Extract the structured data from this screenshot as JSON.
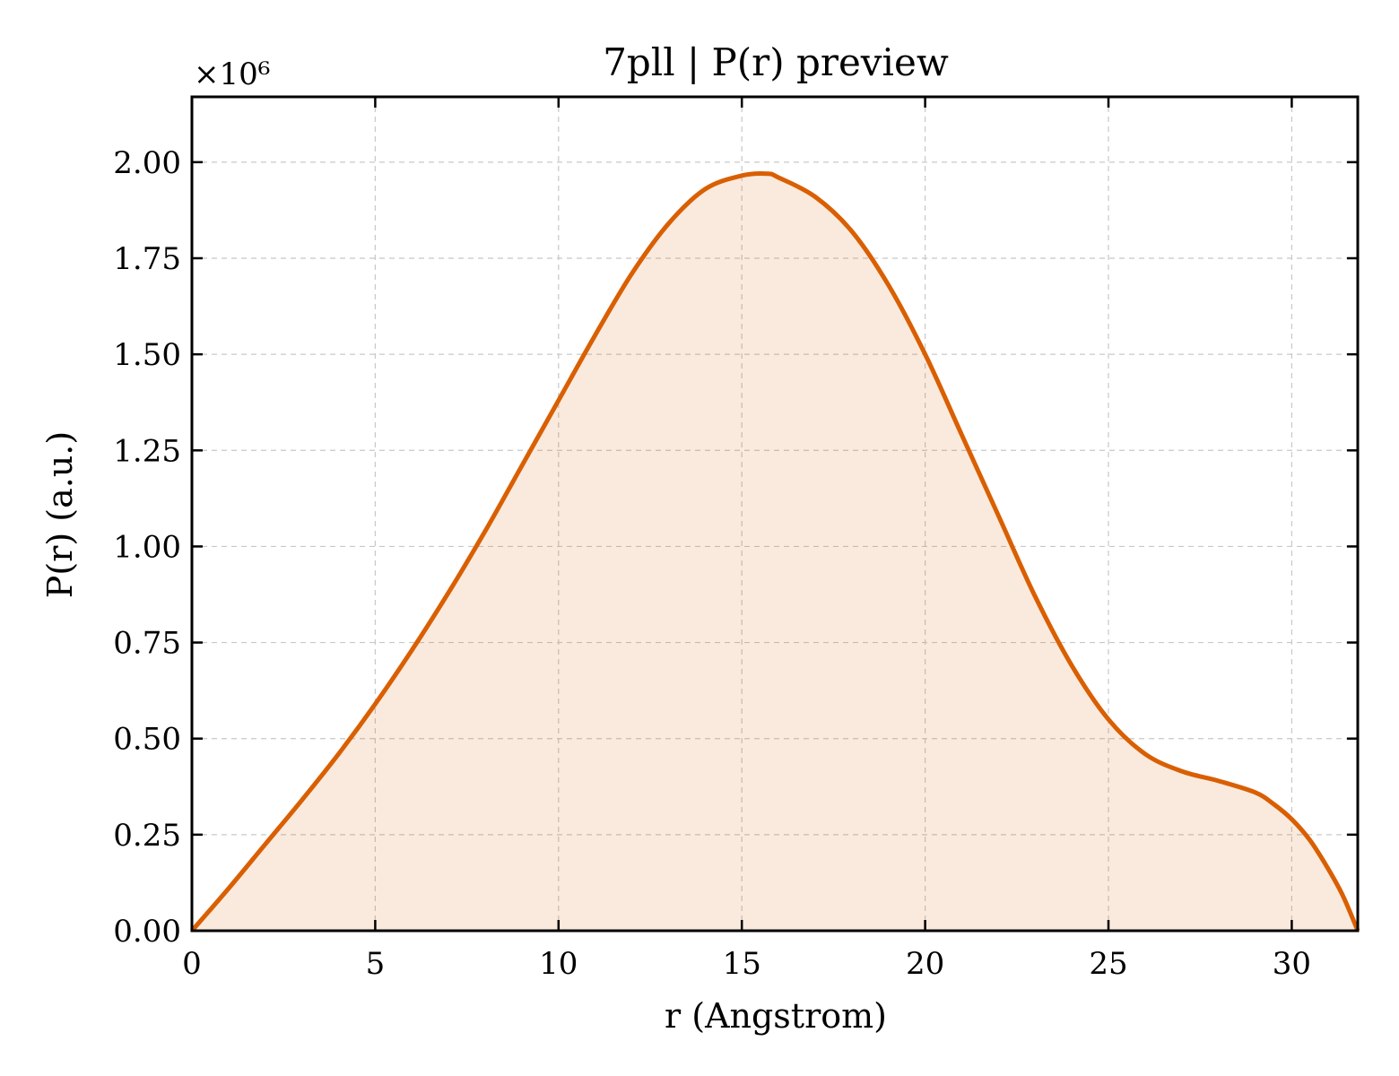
{
  "chart_data": {
    "type": "area",
    "title": "7pll | P(r) preview",
    "xlabel": "r (Angstrom)",
    "ylabel": "P(r) (a.u.)",
    "y_multiplier": "×10⁶",
    "xlim": [
      0,
      31.8
    ],
    "ylim": [
      0,
      2.17
    ],
    "xticks": [
      0,
      5,
      10,
      15,
      20,
      25,
      30
    ],
    "yticks": [
      0.0,
      0.25,
      0.5,
      0.75,
      1.0,
      1.25,
      1.5,
      1.75,
      2.0
    ],
    "xtick_labels": [
      "0",
      "5",
      "10",
      "15",
      "20",
      "25",
      "30"
    ],
    "ytick_labels": [
      "0.00",
      "0.25",
      "0.50",
      "0.75",
      "1.00",
      "1.25",
      "1.50",
      "1.75",
      "2.00"
    ],
    "grid": true,
    "line_color": "#d95f02",
    "fill_color": "#d95f02",
    "series": [
      {
        "x": [
          0,
          1,
          2,
          3,
          4,
          5,
          6,
          7,
          8,
          9,
          10,
          11,
          12,
          13,
          14,
          15,
          15.7,
          16,
          17,
          18,
          19,
          20,
          21,
          22,
          23,
          24,
          25,
          26,
          27,
          28,
          29,
          29.5,
          30,
          30.5,
          31,
          31.4,
          31.8
        ],
        "y": [
          0.0,
          0.11,
          0.225,
          0.34,
          0.46,
          0.59,
          0.73,
          0.88,
          1.04,
          1.21,
          1.38,
          1.55,
          1.71,
          1.84,
          1.93,
          1.965,
          1.97,
          1.96,
          1.91,
          1.82,
          1.68,
          1.5,
          1.29,
          1.08,
          0.87,
          0.69,
          0.55,
          0.46,
          0.415,
          0.39,
          0.36,
          0.33,
          0.29,
          0.235,
          0.16,
          0.09,
          0.0
        ]
      }
    ]
  }
}
